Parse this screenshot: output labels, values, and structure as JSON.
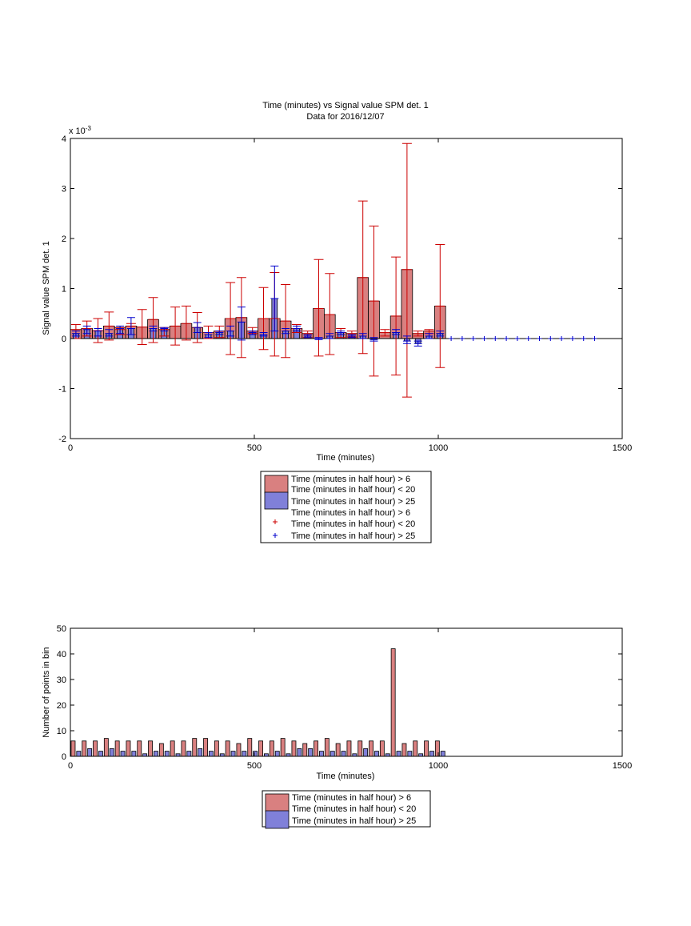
{
  "colors": {
    "red_fill": "#d98080",
    "red_line": "#cc0000",
    "blue_fill": "#8080d9",
    "blue_line": "#0000cc"
  },
  "chart_data": [
    {
      "type": "bar",
      "title": "Time (minutes) vs Signal value SPM det. 1",
      "subtitle": "Data for 2016/12/07",
      "xlabel": "Time (minutes)",
      "ylabel": "Signal value SPM det. 1",
      "y_exponent": "x 10",
      "y_exponent_power": "-3",
      "xlim": [
        0,
        1500
      ],
      "ylim": [
        -2,
        4
      ],
      "x_ticks": [
        "0",
        "500",
        "1000",
        "1500"
      ],
      "y_ticks": [
        "-2",
        "-1",
        "0",
        "1",
        "2",
        "3",
        "4"
      ],
      "grid": false,
      "legend_placement": "below",
      "legend": [
        "Time (minutes in half hour) > 6",
        "Time (minutes in half hour) < 20",
        "Time (minutes in half hour) > 25",
        "Time (minutes in half hour) > 6",
        "Time (minutes in half hour) < 20",
        "Time (minutes in half hour) > 25"
      ],
      "series": [
        {
          "name": "Time (minutes in half hour) > 6 / < 20",
          "x": [
            15,
            45,
            75,
            105,
            135,
            165,
            195,
            225,
            255,
            285,
            315,
            345,
            375,
            405,
            435,
            465,
            495,
            525,
            555,
            585,
            615,
            645,
            675,
            705,
            735,
            765,
            795,
            825,
            855,
            885,
            915,
            945,
            975,
            1005
          ],
          "values": [
            0.18,
            0.2,
            0.16,
            0.25,
            0.22,
            0.25,
            0.23,
            0.38,
            0.18,
            0.25,
            0.3,
            0.22,
            0.12,
            0.15,
            0.4,
            0.42,
            0.15,
            0.4,
            0.4,
            0.35,
            0.2,
            0.1,
            0.6,
            0.48,
            0.12,
            0.1,
            1.22,
            0.75,
            0.12,
            0.45,
            1.38,
            0.1,
            0.15,
            0.65
          ],
          "err_low": [
            0.0,
            0.05,
            -0.08,
            -0.03,
            0.08,
            0.08,
            -0.12,
            -0.08,
            0.05,
            -0.13,
            -0.03,
            -0.08,
            0.0,
            0.02,
            -0.32,
            -0.38,
            0.1,
            -0.22,
            -0.35,
            -0.38,
            0.12,
            0.02,
            -0.35,
            -0.32,
            0.02,
            0.03,
            -0.3,
            -0.75,
            0.05,
            -0.73,
            -1.17,
            0.05,
            0.1,
            -0.58
          ],
          "err_high": [
            0.28,
            0.35,
            0.4,
            0.53,
            0.18,
            0.3,
            0.58,
            0.82,
            0.22,
            0.63,
            0.65,
            0.52,
            0.25,
            0.25,
            1.12,
            1.22,
            0.22,
            1.02,
            1.32,
            1.08,
            0.28,
            0.15,
            1.58,
            1.3,
            0.2,
            0.15,
            2.75,
            2.25,
            0.18,
            1.63,
            3.9,
            0.15,
            0.18,
            1.88
          ]
        },
        {
          "name": "Time (minutes in half hour) > 25",
          "x": [
            15,
            45,
            75,
            105,
            135,
            165,
            195,
            225,
            255,
            285,
            315,
            345,
            375,
            405,
            435,
            465,
            495,
            525,
            555,
            585,
            615,
            645,
            675,
            705,
            735,
            765,
            795,
            825,
            855,
            885,
            915,
            945,
            975,
            1005
          ],
          "values": [
            0.1,
            0.18,
            0.15,
            0.1,
            0.2,
            0.2,
            0.0,
            0.2,
            0.2,
            0.0,
            0.0,
            0.22,
            0.08,
            0.12,
            0.15,
            0.33,
            0.12,
            0.08,
            0.8,
            0.15,
            0.2,
            0.05,
            0.0,
            0.05,
            0.12,
            0.05,
            0.05,
            -0.02,
            0.0,
            0.12,
            -0.05,
            -0.1,
            0.05,
            0.1
          ],
          "err_low": [
            0.05,
            0.1,
            0.05,
            0.05,
            0.1,
            0.08,
            0.0,
            0.15,
            0.15,
            0.0,
            0.0,
            0.12,
            0.02,
            0.08,
            0.05,
            -0.03,
            0.08,
            0.05,
            0.15,
            0.1,
            0.15,
            0.02,
            -0.02,
            0.0,
            0.08,
            0.02,
            0.0,
            -0.05,
            0.0,
            0.08,
            -0.1,
            -0.15,
            0.0,
            0.05
          ],
          "err_high": [
            0.15,
            0.25,
            0.2,
            0.18,
            0.25,
            0.42,
            0.0,
            0.25,
            0.22,
            0.0,
            0.0,
            0.32,
            0.12,
            0.15,
            0.25,
            0.63,
            0.15,
            0.12,
            1.45,
            0.2,
            0.25,
            0.08,
            0.02,
            0.1,
            0.15,
            0.08,
            0.1,
            0.02,
            0.0,
            0.18,
            0.05,
            -0.05,
            0.1,
            0.15
          ]
        },
        {
          "name": "Time (minutes in half hour) > 25 markers",
          "x": [
            1035,
            1065,
            1095,
            1125,
            1155,
            1185,
            1215,
            1245,
            1275,
            1305,
            1335,
            1365,
            1395,
            1425
          ],
          "values": [
            0,
            0,
            0,
            0,
            0,
            0,
            0,
            0,
            0,
            0,
            0,
            0,
            0,
            0
          ]
        }
      ]
    },
    {
      "type": "bar",
      "title": "",
      "xlabel": "Time (minutes)",
      "ylabel": "Number of points in bin",
      "xlim": [
        0,
        1500
      ],
      "ylim": [
        0,
        50
      ],
      "x_ticks": [
        "0",
        "500",
        "1000",
        "1500"
      ],
      "y_ticks": [
        "0",
        "10",
        "20",
        "30",
        "40",
        "50"
      ],
      "grid": false,
      "legend_placement": "below",
      "legend": [
        "Time (minutes in half hour) > 6",
        "Time (minutes in half hour) < 20",
        "Time (minutes in half hour) > 25"
      ],
      "series": [
        {
          "name": "Time (minutes in half hour) > 6 / < 20",
          "x": [
            15,
            45,
            75,
            105,
            135,
            165,
            195,
            225,
            255,
            285,
            315,
            345,
            375,
            405,
            435,
            465,
            495,
            525,
            555,
            585,
            615,
            645,
            675,
            705,
            735,
            765,
            795,
            825,
            855,
            885,
            915,
            945,
            975,
            1005
          ],
          "values": [
            6,
            6,
            6,
            7,
            6,
            6,
            6,
            6,
            5,
            6,
            6,
            7,
            7,
            6,
            6,
            5,
            7,
            6,
            6,
            7,
            6,
            5,
            6,
            7,
            5,
            6,
            6,
            6,
            6,
            42,
            5,
            6,
            6,
            6
          ]
        },
        {
          "name": "Time (minutes in half hour) > 25",
          "x": [
            15,
            45,
            75,
            105,
            135,
            165,
            195,
            225,
            255,
            285,
            315,
            345,
            375,
            405,
            435,
            465,
            495,
            525,
            555,
            585,
            615,
            645,
            675,
            705,
            735,
            765,
            795,
            825,
            855,
            885,
            915,
            945,
            975,
            1005
          ],
          "values": [
            2,
            3,
            2,
            3,
            2,
            2,
            1,
            2,
            2,
            1,
            2,
            3,
            2,
            1,
            2,
            2,
            2,
            1,
            2,
            1,
            3,
            3,
            2,
            2,
            2,
            1,
            3,
            2,
            1,
            2,
            2,
            1,
            2,
            2
          ]
        }
      ]
    }
  ]
}
